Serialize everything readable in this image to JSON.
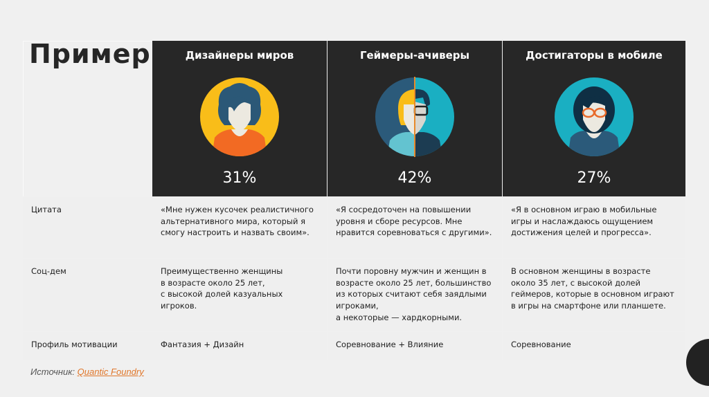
{
  "title": "Пример",
  "segments": [
    {
      "name": "Дизайнеры миров",
      "percent": "31%",
      "avatar": "woman-curly-hair-icon",
      "circle_color": "#f9bd19"
    },
    {
      "name": "Геймеры-ачиверы",
      "percent": "42%",
      "avatar": "half-woman-half-man-icon",
      "circle_color": "#1aafc2"
    },
    {
      "name": "Достигаторы в мобиле",
      "percent": "27%",
      "avatar": "woman-glasses-icon",
      "circle_color": "#1aafc2"
    }
  ],
  "rows": [
    {
      "label": "Цитата",
      "cells": [
        "«Мне нужен кусочек реалистичного альтернативного мира, который я смогу настроить и назвать своим».",
        "«Я сосредоточен на повышении уровня и сборе ресурсов. Мне нравится соревноваться с другими».",
        "«Я в основном играю в мобильные игры и наслаждаюсь ощущением достижения целей и прогресса»."
      ]
    },
    {
      "label": "Соц-дем",
      "cells": [
        "Преимущественно женщины\nв возрасте около 25 лет,\nс высокой долей казуальных игроков.",
        "Почти поровну мужчин и женщин в возрасте около 25 лет, большинство из которых считают себя заядлыми игроками,\nа некоторые — хардкорными.",
        "В основном женщины в возрасте около 35 лет, с высокой долей геймеров, которые в основном играют в игры на смартфоне или планшете."
      ]
    },
    {
      "label": "Профиль мотивации",
      "cells": [
        "Фантазия + Дизайн",
        "Соревнование + Влияние",
        "Соревнование"
      ]
    }
  ],
  "source": {
    "label": "Источник:",
    "link": "Quantic Foundry",
    "link_color": "#e0762a"
  }
}
